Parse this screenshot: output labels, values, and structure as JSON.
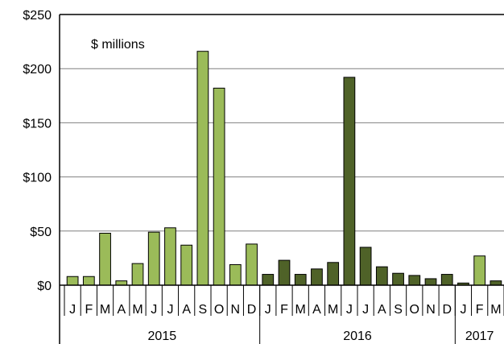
{
  "chart_data": {
    "type": "bar",
    "title": "",
    "xlabel": "",
    "ylabel": "",
    "units_label": "$ millions",
    "ylim": [
      0,
      250
    ],
    "y_ticks": [
      {
        "value": 0,
        "label": "$0"
      },
      {
        "value": 50,
        "label": "$50"
      },
      {
        "value": 100,
        "label": "$100"
      },
      {
        "value": 150,
        "label": "$150"
      },
      {
        "value": 200,
        "label": "$200"
      },
      {
        "value": 250,
        "label": "$250"
      }
    ],
    "grid": "horizontal",
    "categories": [
      "J",
      "F",
      "M",
      "A",
      "M",
      "J",
      "J",
      "A",
      "S",
      "O",
      "N",
      "D",
      "J",
      "F",
      "M",
      "A",
      "M",
      "J",
      "J",
      "A",
      "S",
      "O",
      "N",
      "D",
      "J",
      "F",
      "M"
    ],
    "values": [
      8,
      8,
      48,
      4,
      20,
      49,
      53,
      37,
      216,
      182,
      19,
      38,
      10,
      23,
      10,
      15,
      21,
      192,
      35,
      17,
      11,
      9,
      6,
      10,
      2,
      27,
      4
    ],
    "groups": [
      {
        "label": "2015",
        "count": 12
      },
      {
        "label": "2016",
        "count": 12
      },
      {
        "label": "2017",
        "count": 3
      }
    ],
    "colors": {
      "light_bar": "#9bbb59",
      "dark_bar": "#4f6228",
      "bar_outline": "#000000",
      "grid": "#808080"
    },
    "bar_color_by_category": [
      "light",
      "light",
      "light",
      "light",
      "light",
      "light",
      "light",
      "light",
      "light",
      "light",
      "light",
      "light",
      "dark",
      "dark",
      "dark",
      "dark",
      "dark",
      "dark",
      "dark",
      "dark",
      "dark",
      "dark",
      "dark",
      "dark",
      "dark",
      "light",
      "dark"
    ]
  }
}
